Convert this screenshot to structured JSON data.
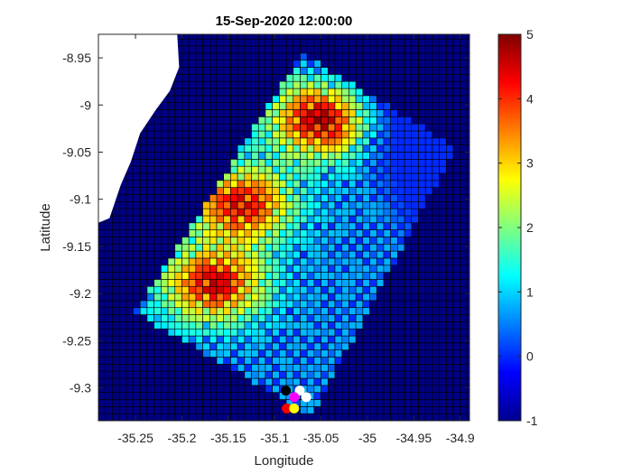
{
  "chart_data": {
    "type": "heatmap",
    "title": "15-Sep-2020 12:00:00",
    "xlabel": "Longitude",
    "ylabel": "Latitude",
    "xlim": [
      -35.29,
      -34.89
    ],
    "ylim": [
      -9.335,
      -8.925
    ],
    "xticks": [
      -35.25,
      -35.2,
      -35.15,
      -35.1,
      -35.05,
      -35,
      -34.95,
      -34.9
    ],
    "xtick_labels": [
      "-35.25",
      "-35.2",
      "-35.15",
      "-35.1",
      "-35.05",
      "-35",
      "-34.95",
      "-34.9"
    ],
    "yticks": [
      -8.95,
      -9,
      -9.05,
      -9.1,
      -9.15,
      -9.2,
      -9.25,
      -9.3
    ],
    "ytick_labels": [
      "-8.95",
      "-9",
      "-9.05",
      "-9.1",
      "-9.15",
      "-9.2",
      "-9.25",
      "-9.3"
    ],
    "colorbar": {
      "colormap": "jet",
      "limits": [
        -1,
        5
      ],
      "ticks": [
        -1,
        0,
        1,
        2,
        3,
        4,
        5
      ],
      "tick_labels": [
        "-1",
        "0",
        "1",
        "2",
        "3",
        "4",
        "5"
      ]
    },
    "grid_resolution": 0.0075,
    "background_value": -1,
    "approximate_field": {
      "description_of_hotspots": "smooth field over a sheared rectangular domain",
      "hotspots": [
        {
          "lon": -35.05,
          "lat": -9.015,
          "value": 5
        },
        {
          "lon": -35.135,
          "lat": -9.105,
          "value": 4.6
        },
        {
          "lon": -35.165,
          "lat": -9.19,
          "value": 4.7
        }
      ],
      "domain_corners": [
        {
          "lon": -35.25,
          "lat": -9.22
        },
        {
          "lon": -35.07,
          "lat": -8.945
        },
        {
          "lon": -34.905,
          "lat": -9.045
        },
        {
          "lon": -35.06,
          "lat": -9.33
        }
      ]
    },
    "coastline_color": "#ffffff",
    "ocean_color": "#000080",
    "markers": [
      {
        "lon": -35.088,
        "lat": -9.303,
        "color": "#000000"
      },
      {
        "lon": -35.073,
        "lat": -9.303,
        "color": "#ffffff"
      },
      {
        "lon": -35.079,
        "lat": -9.31,
        "color": "#ff00ff"
      },
      {
        "lon": -35.066,
        "lat": -9.31,
        "color": "#ffffff"
      },
      {
        "lon": -35.087,
        "lat": -9.322,
        "color": "#ff0000"
      },
      {
        "lon": -35.079,
        "lat": -9.322,
        "color": "#ffff00"
      }
    ]
  }
}
